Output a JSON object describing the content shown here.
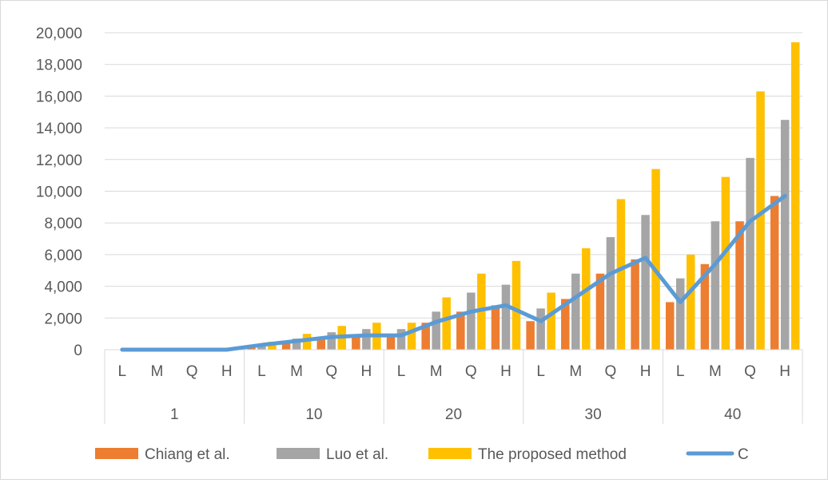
{
  "chart_data": {
    "type": "bar",
    "groups": [
      "1",
      "10",
      "20",
      "30",
      "40"
    ],
    "subcategories": [
      "L",
      "M",
      "Q",
      "H"
    ],
    "y_ticks": [
      "0",
      "2,000",
      "4,000",
      "6,000",
      "8,000",
      "10,000",
      "12,000",
      "14,000",
      "16,000",
      "18,000",
      "20,000"
    ],
    "ylim": [
      0,
      20000
    ],
    "grid": true,
    "legend_position": "bottom",
    "series": [
      {
        "name": "Chiang et al.",
        "kind": "bar",
        "color": "#ED7D31",
        "values": [
          0,
          0,
          0,
          0,
          250,
          500,
          750,
          900,
          900,
          1700,
          2400,
          2800,
          1800,
          3200,
          4800,
          5700,
          3000,
          5400,
          8100,
          9700
        ]
      },
      {
        "name": "Luo et al.",
        "kind": "bar",
        "color": "#A5A5A5",
        "values": [
          0,
          0,
          0,
          0,
          350,
          700,
          1100,
          1300,
          1300,
          2400,
          3600,
          4100,
          2600,
          4800,
          7100,
          8500,
          4500,
          8100,
          12100,
          14500
        ]
      },
      {
        "name": "The proposed method",
        "kind": "bar",
        "color": "#FFC000",
        "values": [
          0,
          0,
          0,
          0,
          500,
          1000,
          1500,
          1700,
          1700,
          3300,
          4800,
          5600,
          3600,
          6400,
          9500,
          11400,
          6000,
          10900,
          16300,
          19400
        ]
      },
      {
        "name": "C",
        "kind": "line",
        "color": "#5B9BD5",
        "values": [
          0,
          0,
          0,
          0,
          300,
          550,
          800,
          900,
          900,
          1750,
          2400,
          2800,
          1800,
          3300,
          4800,
          5800,
          3000,
          5400,
          8100,
          9700
        ]
      }
    ]
  }
}
